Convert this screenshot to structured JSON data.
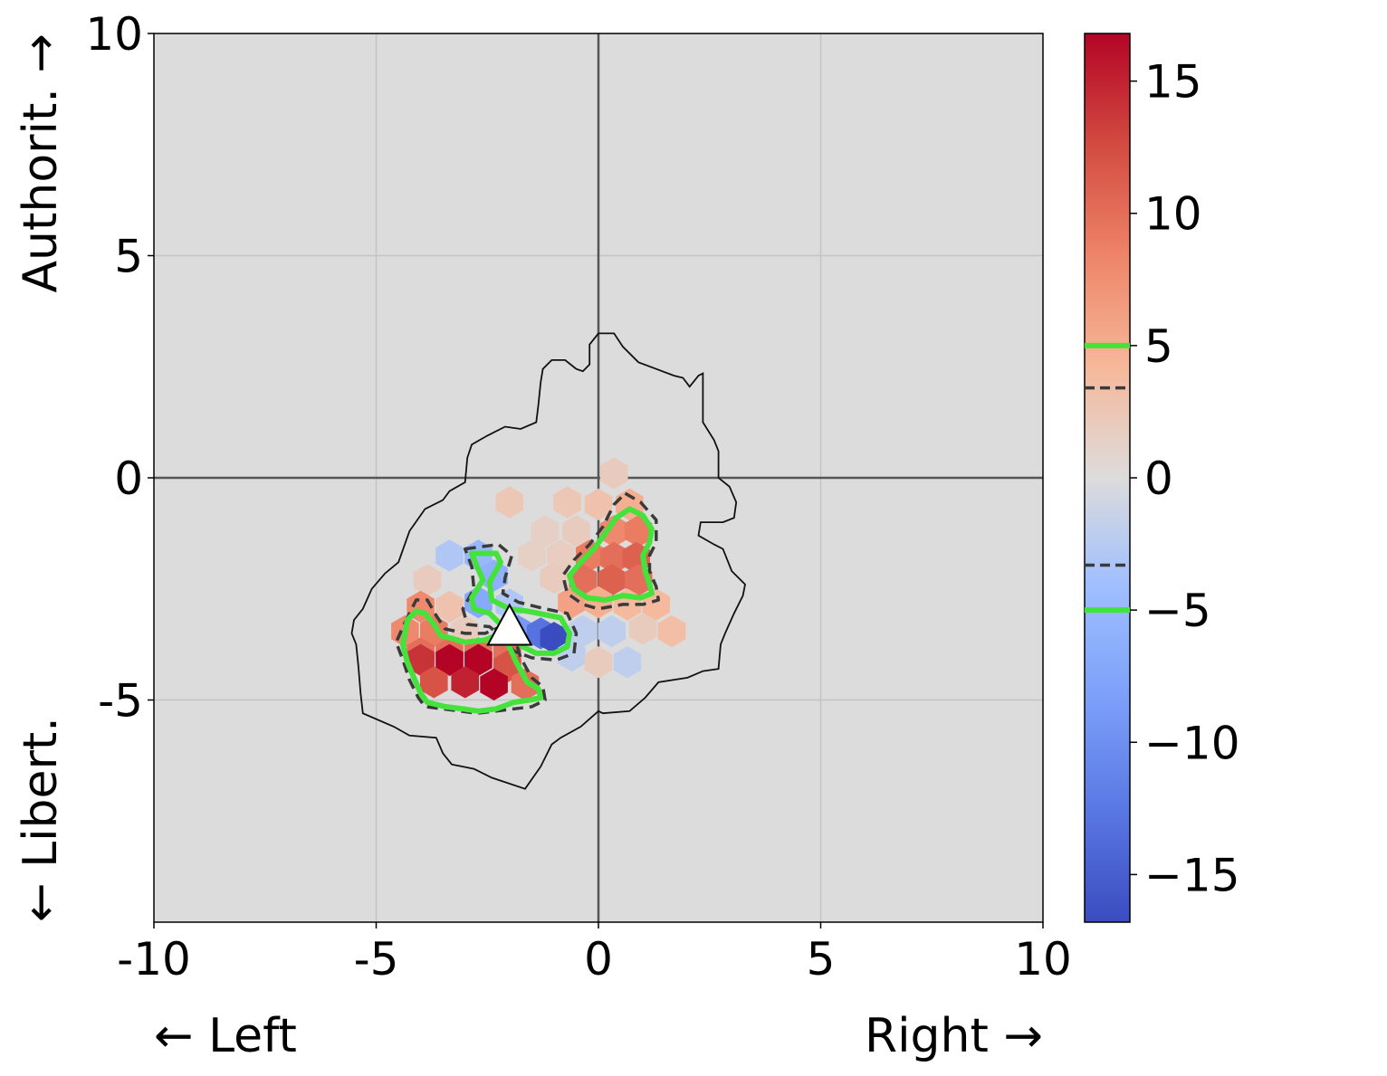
{
  "chart_data": {
    "type": "heatmap",
    "subtype": "hexbin",
    "title": "",
    "x_axis": {
      "range": [
        -10,
        10
      ],
      "ticks": [
        -10,
        -5,
        0,
        5,
        10
      ],
      "tick_labels": [
        "-10",
        "-5",
        "0",
        "5",
        "10"
      ],
      "left_label": "← Left",
      "right_label": "Right →"
    },
    "y_axis": {
      "range": [
        -10,
        10
      ],
      "ticks": [
        -5,
        0,
        5,
        10
      ],
      "tick_labels": [
        "-5",
        "0",
        "5",
        "10"
      ],
      "bottom_label": "← Libert.",
      "top_label": "Authorit. →"
    },
    "grid": true,
    "background_color": "#dcdcdc",
    "colormap": "coolwarm",
    "colorbar": {
      "range": [
        -16.8,
        16.8
      ],
      "ticks": [
        15,
        10,
        5,
        0,
        -5,
        -10,
        -15
      ],
      "tick_labels": [
        "15",
        "10",
        "5",
        "0",
        "−5",
        "−10",
        "−15"
      ],
      "marker_lines": [
        {
          "value": 5,
          "style": "solid",
          "color": "#44e23a"
        },
        {
          "value": 3.4,
          "style": "dashed",
          "color": "#3a3a3a"
        },
        {
          "value": -3.3,
          "style": "dashed",
          "color": "#3a3a3a"
        },
        {
          "value": -5,
          "style": "solid",
          "color": "#44e23a"
        }
      ]
    },
    "hex_radius": 0.36,
    "cells": [
      {
        "x": 0.35,
        "y": 0.1,
        "v": 2
      },
      {
        "x": -2.0,
        "y": -0.55,
        "v": 2.5
      },
      {
        "x": -0.7,
        "y": -0.55,
        "v": 2.5
      },
      {
        "x": 0.0,
        "y": -0.6,
        "v": 3
      },
      {
        "x": 0.7,
        "y": -0.6,
        "v": 5
      },
      {
        "x": -1.2,
        "y": -1.2,
        "v": 1.5
      },
      {
        "x": -0.5,
        "y": -1.2,
        "v": 2
      },
      {
        "x": 0.35,
        "y": -1.2,
        "v": 8
      },
      {
        "x": 0.9,
        "y": -1.2,
        "v": 9
      },
      {
        "x": -1.5,
        "y": -1.75,
        "v": 1.5
      },
      {
        "x": -0.85,
        "y": -1.75,
        "v": 1.8
      },
      {
        "x": -0.2,
        "y": -1.75,
        "v": 9
      },
      {
        "x": 0.35,
        "y": -1.8,
        "v": 10
      },
      {
        "x": 0.85,
        "y": -1.8,
        "v": 11
      },
      {
        "x": -3.35,
        "y": -1.75,
        "v": -3
      },
      {
        "x": -2.7,
        "y": -1.75,
        "v": -5
      },
      {
        "x": -2.35,
        "y": -2.2,
        "v": -6
      },
      {
        "x": -1.0,
        "y": -2.25,
        "v": 2
      },
      {
        "x": -0.35,
        "y": -2.3,
        "v": 10
      },
      {
        "x": 0.3,
        "y": -2.3,
        "v": 11
      },
      {
        "x": 0.9,
        "y": -2.3,
        "v": 10
      },
      {
        "x": -3.85,
        "y": -2.3,
        "v": 2
      },
      {
        "x": -2.7,
        "y": -2.8,
        "v": -7
      },
      {
        "x": -2.0,
        "y": -2.85,
        "v": -3
      },
      {
        "x": -0.6,
        "y": -2.8,
        "v": 6
      },
      {
        "x": 0.0,
        "y": -2.8,
        "v": 5
      },
      {
        "x": 0.65,
        "y": -2.85,
        "v": 4
      },
      {
        "x": 1.3,
        "y": -2.85,
        "v": 4
      },
      {
        "x": -4.0,
        "y": -2.9,
        "v": 8
      },
      {
        "x": -3.35,
        "y": -2.9,
        "v": 3
      },
      {
        "x": -4.35,
        "y": -3.45,
        "v": 8
      },
      {
        "x": -3.7,
        "y": -3.45,
        "v": 9
      },
      {
        "x": -3.0,
        "y": -3.45,
        "v": 2
      },
      {
        "x": -1.8,
        "y": -3.45,
        "v": -9
      },
      {
        "x": -1.3,
        "y": -3.5,
        "v": -13
      },
      {
        "x": -0.35,
        "y": -3.45,
        "v": -2
      },
      {
        "x": 0.3,
        "y": -3.45,
        "v": -2
      },
      {
        "x": 1.0,
        "y": -3.4,
        "v": 2
      },
      {
        "x": 1.65,
        "y": -3.45,
        "v": 3.5
      },
      {
        "x": -2.0,
        "y": -3.55,
        "v": -5
      },
      {
        "x": -1.0,
        "y": -3.6,
        "v": -17
      },
      {
        "x": -4.0,
        "y": -3.95,
        "v": 10
      },
      {
        "x": -3.35,
        "y": -3.95,
        "v": 10
      },
      {
        "x": -2.7,
        "y": -3.95,
        "v": 10
      },
      {
        "x": -2.05,
        "y": -3.95,
        "v": 10
      },
      {
        "x": -0.6,
        "y": -4.0,
        "v": -2
      },
      {
        "x": 0.0,
        "y": -4.15,
        "v": 2
      },
      {
        "x": 0.65,
        "y": -4.15,
        "v": -2
      },
      {
        "x": -4.0,
        "y": -4.1,
        "v": 14
      },
      {
        "x": -3.35,
        "y": -4.1,
        "v": 17
      },
      {
        "x": -2.7,
        "y": -4.1,
        "v": 17
      },
      {
        "x": -2.05,
        "y": -4.25,
        "v": 12
      },
      {
        "x": -3.7,
        "y": -4.6,
        "v": 12
      },
      {
        "x": -3.0,
        "y": -4.6,
        "v": 15
      },
      {
        "x": -2.35,
        "y": -4.65,
        "v": 17
      },
      {
        "x": -1.65,
        "y": -4.65,
        "v": 10
      }
    ],
    "outline_polygon": [
      [
        0.0,
        3.25
      ],
      [
        0.35,
        3.25
      ],
      [
        0.55,
        2.95
      ],
      [
        0.9,
        2.6
      ],
      [
        1.3,
        2.45
      ],
      [
        1.7,
        2.3
      ],
      [
        1.9,
        2.25
      ],
      [
        2.05,
        2.05
      ],
      [
        2.25,
        2.3
      ],
      [
        2.35,
        2.35
      ],
      [
        2.35,
        1.9
      ],
      [
        2.35,
        1.25
      ],
      [
        2.6,
        0.85
      ],
      [
        2.7,
        0.6
      ],
      [
        2.7,
        0.0
      ],
      [
        2.95,
        -0.2
      ],
      [
        3.1,
        -0.55
      ],
      [
        3.05,
        -0.9
      ],
      [
        2.8,
        -1.0
      ],
      [
        2.3,
        -1.0
      ],
      [
        2.25,
        -1.3
      ],
      [
        2.6,
        -1.5
      ],
      [
        2.8,
        -1.6
      ],
      [
        3.0,
        -2.1
      ],
      [
        3.3,
        -2.4
      ],
      [
        3.25,
        -2.65
      ],
      [
        3.05,
        -3.05
      ],
      [
        2.85,
        -3.5
      ],
      [
        2.75,
        -3.75
      ],
      [
        2.7,
        -4.3
      ],
      [
        2.35,
        -4.35
      ],
      [
        2.0,
        -4.5
      ],
      [
        1.35,
        -4.6
      ],
      [
        1.05,
        -4.95
      ],
      [
        0.7,
        -5.25
      ],
      [
        0.1,
        -5.3
      ],
      [
        0.0,
        -5.25
      ],
      [
        -0.4,
        -5.6
      ],
      [
        -0.85,
        -5.85
      ],
      [
        -1.05,
        -6.0
      ],
      [
        -1.3,
        -6.5
      ],
      [
        -1.65,
        -7.0
      ],
      [
        -2.4,
        -6.75
      ],
      [
        -2.8,
        -6.55
      ],
      [
        -3.3,
        -6.45
      ],
      [
        -3.5,
        -6.2
      ],
      [
        -3.65,
        -5.85
      ],
      [
        -4.25,
        -5.8
      ],
      [
        -4.6,
        -5.6
      ],
      [
        -5.3,
        -5.3
      ],
      [
        -5.35,
        -4.85
      ],
      [
        -5.4,
        -4.25
      ],
      [
        -5.45,
        -3.75
      ],
      [
        -5.55,
        -3.5
      ],
      [
        -5.5,
        -3.2
      ],
      [
        -5.3,
        -2.95
      ],
      [
        -5.1,
        -2.5
      ],
      [
        -4.8,
        -2.15
      ],
      [
        -4.5,
        -1.9
      ],
      [
        -4.25,
        -1.2
      ],
      [
        -3.9,
        -0.7
      ],
      [
        -3.5,
        -0.5
      ],
      [
        -3.35,
        -0.3
      ],
      [
        -3.0,
        -0.1
      ],
      [
        -2.95,
        0.45
      ],
      [
        -2.85,
        0.75
      ],
      [
        -2.5,
        0.95
      ],
      [
        -2.1,
        1.15
      ],
      [
        -1.75,
        1.1
      ],
      [
        -1.4,
        1.25
      ],
      [
        -1.35,
        1.65
      ],
      [
        -1.3,
        2.15
      ],
      [
        -1.25,
        2.45
      ],
      [
        -1.05,
        2.65
      ],
      [
        -0.75,
        2.65
      ],
      [
        -0.5,
        2.45
      ],
      [
        -0.35,
        2.4
      ],
      [
        -0.2,
        2.55
      ],
      [
        -0.2,
        3.0
      ]
    ],
    "contours_positive_5": [
      [
        [
          -4.3,
          -3.2
        ],
        [
          -4.1,
          -3.0
        ],
        [
          -3.9,
          -3.05
        ],
        [
          -3.7,
          -3.3
        ],
        [
          -3.55,
          -3.55
        ],
        [
          -3.35,
          -3.6
        ],
        [
          -3.0,
          -3.7
        ],
        [
          -2.55,
          -3.65
        ],
        [
          -2.3,
          -3.55
        ],
        [
          -2.05,
          -3.7
        ],
        [
          -1.85,
          -4.15
        ],
        [
          -1.6,
          -4.6
        ],
        [
          -1.35,
          -4.75
        ],
        [
          -1.3,
          -4.95
        ],
        [
          -1.55,
          -5.0
        ],
        [
          -1.9,
          -5.05
        ],
        [
          -2.3,
          -5.2
        ],
        [
          -2.7,
          -5.25
        ],
        [
          -3.05,
          -5.2
        ],
        [
          -3.45,
          -5.15
        ],
        [
          -3.85,
          -5.05
        ],
        [
          -4.0,
          -4.85
        ],
        [
          -4.15,
          -4.5
        ],
        [
          -4.3,
          -4.15
        ],
        [
          -4.4,
          -3.75
        ]
      ],
      [
        [
          0.7,
          -0.7
        ],
        [
          1.0,
          -0.85
        ],
        [
          1.2,
          -1.15
        ],
        [
          1.15,
          -1.45
        ],
        [
          1.0,
          -1.75
        ],
        [
          1.05,
          -2.1
        ],
        [
          1.15,
          -2.4
        ],
        [
          1.2,
          -2.6
        ],
        [
          0.95,
          -2.7
        ],
        [
          0.55,
          -2.65
        ],
        [
          0.15,
          -2.75
        ],
        [
          -0.25,
          -2.7
        ],
        [
          -0.55,
          -2.5
        ],
        [
          -0.65,
          -2.2
        ],
        [
          -0.4,
          -1.9
        ],
        [
          -0.1,
          -1.6
        ],
        [
          0.15,
          -1.25
        ],
        [
          0.4,
          -0.9
        ]
      ]
    ],
    "contours_negative_5": [
      [
        [
          -2.85,
          -1.7
        ],
        [
          -2.3,
          -1.7
        ],
        [
          -2.2,
          -1.9
        ],
        [
          -2.45,
          -2.35
        ],
        [
          -2.4,
          -2.75
        ],
        [
          -2.0,
          -2.95
        ],
        [
          -1.6,
          -3.0
        ],
        [
          -0.85,
          -3.15
        ],
        [
          -0.65,
          -3.5
        ],
        [
          -0.7,
          -3.8
        ],
        [
          -1.0,
          -3.95
        ],
        [
          -1.4,
          -3.95
        ],
        [
          -1.7,
          -3.8
        ],
        [
          -2.0,
          -3.5
        ],
        [
          -2.2,
          -3.3
        ],
        [
          -2.45,
          -3.05
        ],
        [
          -2.8,
          -2.95
        ],
        [
          -2.85,
          -2.7
        ],
        [
          -2.6,
          -2.3
        ],
        [
          -2.75,
          -1.95
        ]
      ]
    ],
    "contours_dashed": [
      [
        [
          -4.35,
          -3.25
        ],
        [
          -4.1,
          -2.75
        ],
        [
          -3.85,
          -2.75
        ],
        [
          -3.65,
          -3.1
        ],
        [
          -3.45,
          -3.4
        ],
        [
          -3.0,
          -3.5
        ],
        [
          -2.55,
          -3.5
        ],
        [
          -2.2,
          -3.35
        ],
        [
          -1.9,
          -3.55
        ],
        [
          -1.75,
          -4.05
        ],
        [
          -1.5,
          -4.5
        ],
        [
          -1.25,
          -4.7
        ],
        [
          -1.2,
          -5.0
        ],
        [
          -1.5,
          -5.15
        ],
        [
          -1.9,
          -5.2
        ],
        [
          -2.3,
          -5.25
        ],
        [
          -2.75,
          -5.3
        ],
        [
          -3.1,
          -5.25
        ],
        [
          -3.5,
          -5.2
        ],
        [
          -3.9,
          -5.15
        ],
        [
          -4.05,
          -4.95
        ],
        [
          -4.25,
          -4.55
        ],
        [
          -4.4,
          -4.1
        ],
        [
          -4.55,
          -3.7
        ]
      ],
      [
        [
          0.6,
          -0.35
        ],
        [
          0.95,
          -0.55
        ],
        [
          1.3,
          -0.95
        ],
        [
          1.3,
          -1.45
        ],
        [
          1.15,
          -1.75
        ],
        [
          1.15,
          -2.1
        ],
        [
          1.3,
          -2.45
        ],
        [
          1.35,
          -2.75
        ],
        [
          1.0,
          -2.85
        ],
        [
          0.55,
          -2.85
        ],
        [
          0.0,
          -2.95
        ],
        [
          -0.35,
          -2.85
        ],
        [
          -0.7,
          -2.6
        ],
        [
          -0.8,
          -2.2
        ],
        [
          -0.55,
          -1.85
        ],
        [
          -0.2,
          -1.5
        ],
        [
          0.1,
          -1.1
        ],
        [
          0.35,
          -0.6
        ]
      ],
      [
        [
          -3.0,
          -1.6
        ],
        [
          -2.25,
          -1.5
        ],
        [
          -1.95,
          -1.75
        ],
        [
          -2.1,
          -2.25
        ],
        [
          -2.15,
          -2.6
        ],
        [
          -1.8,
          -2.8
        ],
        [
          -1.2,
          -2.95
        ],
        [
          -0.7,
          -3.05
        ],
        [
          -0.5,
          -3.5
        ],
        [
          -0.55,
          -3.95
        ],
        [
          -0.95,
          -4.1
        ],
        [
          -1.5,
          -4.05
        ],
        [
          -1.9,
          -3.9
        ],
        [
          -2.15,
          -3.6
        ],
        [
          -2.45,
          -3.35
        ],
        [
          -2.95,
          -3.3
        ],
        [
          -3.05,
          -2.95
        ],
        [
          -2.8,
          -2.5
        ],
        [
          -2.85,
          -2.0
        ]
      ]
    ],
    "marker": {
      "x": -2.0,
      "y": -3.35,
      "shape": "triangle",
      "color": "#ffffff"
    }
  }
}
